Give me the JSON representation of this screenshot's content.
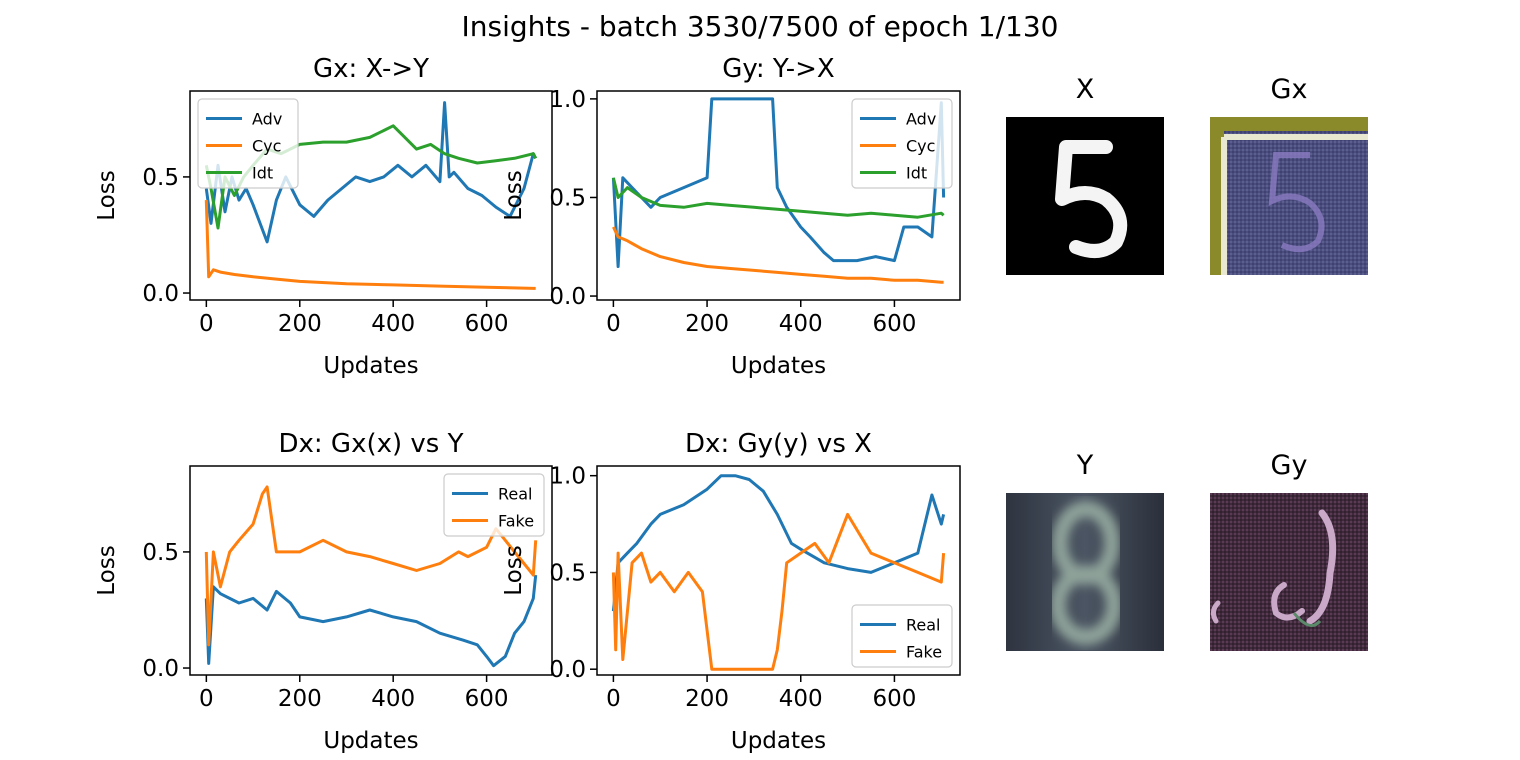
{
  "figure": {
    "suptitle": "Insights - batch 3530/7500 of epoch 1/130"
  },
  "colors": {
    "blue": "#1f77b4",
    "orange": "#ff7f0e",
    "green": "#2ca02c"
  },
  "chart_data": [
    {
      "id": "gx",
      "type": "line",
      "title": "Gx: X->Y",
      "xlabel": "Updates",
      "ylabel": "Loss",
      "xlim": [
        -35,
        740
      ],
      "ylim": [
        -0.03,
        0.87
      ],
      "xticks": [
        0,
        200,
        400,
        600
      ],
      "yticks": [
        0.0,
        0.5
      ],
      "ytick_labels": [
        "0.0",
        "0.5"
      ],
      "legend_loc": "upper left",
      "series": [
        {
          "name": "Adv",
          "color": "#1f77b4",
          "x": [
            0,
            10,
            25,
            40,
            55,
            70,
            85,
            100,
            115,
            130,
            150,
            170,
            200,
            230,
            260,
            290,
            320,
            350,
            380,
            410,
            440,
            470,
            500,
            510,
            520,
            530,
            560,
            590,
            620,
            650,
            680,
            700,
            705
          ],
          "y": [
            0.45,
            0.3,
            0.55,
            0.35,
            0.5,
            0.4,
            0.45,
            0.38,
            0.3,
            0.22,
            0.4,
            0.5,
            0.38,
            0.33,
            0.4,
            0.45,
            0.5,
            0.48,
            0.5,
            0.55,
            0.5,
            0.55,
            0.48,
            0.82,
            0.5,
            0.52,
            0.45,
            0.42,
            0.37,
            0.33,
            0.45,
            0.6,
            0.58
          ]
        },
        {
          "name": "Cyc",
          "color": "#ff7f0e",
          "x": [
            0,
            5,
            15,
            30,
            60,
            100,
            150,
            200,
            300,
            400,
            500,
            600,
            700,
            705
          ],
          "y": [
            0.4,
            0.07,
            0.1,
            0.09,
            0.08,
            0.07,
            0.06,
            0.05,
            0.04,
            0.035,
            0.03,
            0.025,
            0.02,
            0.02
          ]
        },
        {
          "name": "Idt",
          "color": "#2ca02c",
          "x": [
            0,
            10,
            25,
            40,
            60,
            80,
            100,
            130,
            160,
            200,
            250,
            300,
            350,
            380,
            400,
            420,
            450,
            480,
            510,
            540,
            580,
            620,
            660,
            700,
            705
          ],
          "y": [
            0.55,
            0.45,
            0.28,
            0.5,
            0.42,
            0.5,
            0.55,
            0.62,
            0.6,
            0.64,
            0.65,
            0.65,
            0.67,
            0.7,
            0.72,
            0.68,
            0.62,
            0.64,
            0.6,
            0.58,
            0.56,
            0.57,
            0.58,
            0.6,
            0.58
          ]
        }
      ]
    },
    {
      "id": "gy",
      "type": "line",
      "title": "Gy: Y->X",
      "xlabel": "Updates",
      "ylabel": "Loss",
      "xlim": [
        -35,
        740
      ],
      "ylim": [
        -0.02,
        1.04
      ],
      "xticks": [
        0,
        200,
        400,
        600
      ],
      "yticks": [
        0.0,
        0.5,
        1.0
      ],
      "ytick_labels": [
        "0.0",
        "0.5",
        "1.0"
      ],
      "legend_loc": "upper right",
      "series": [
        {
          "name": "Adv",
          "color": "#1f77b4",
          "x": [
            0,
            10,
            20,
            40,
            60,
            80,
            100,
            150,
            200,
            210,
            250,
            300,
            340,
            350,
            370,
            400,
            420,
            450,
            470,
            520,
            560,
            600,
            620,
            650,
            680,
            700,
            705
          ],
          "y": [
            0.6,
            0.15,
            0.6,
            0.55,
            0.5,
            0.45,
            0.5,
            0.55,
            0.6,
            1.0,
            1.0,
            1.0,
            1.0,
            0.55,
            0.45,
            0.35,
            0.3,
            0.22,
            0.18,
            0.18,
            0.2,
            0.18,
            0.35,
            0.35,
            0.3,
            0.98,
            0.5
          ]
        },
        {
          "name": "Cyc",
          "color": "#ff7f0e",
          "x": [
            0,
            10,
            30,
            60,
            100,
            150,
            200,
            250,
            300,
            350,
            400,
            450,
            500,
            550,
            600,
            650,
            700,
            705
          ],
          "y": [
            0.35,
            0.3,
            0.28,
            0.24,
            0.2,
            0.17,
            0.15,
            0.14,
            0.13,
            0.12,
            0.11,
            0.1,
            0.09,
            0.09,
            0.08,
            0.08,
            0.07,
            0.07
          ]
        },
        {
          "name": "Idt",
          "color": "#2ca02c",
          "x": [
            0,
            10,
            30,
            60,
            100,
            150,
            200,
            250,
            300,
            350,
            400,
            450,
            500,
            550,
            600,
            650,
            700,
            705
          ],
          "y": [
            0.6,
            0.5,
            0.55,
            0.5,
            0.46,
            0.45,
            0.47,
            0.46,
            0.45,
            0.44,
            0.43,
            0.42,
            0.41,
            0.42,
            0.41,
            0.4,
            0.42,
            0.41
          ]
        }
      ]
    },
    {
      "id": "dx1",
      "type": "line",
      "title": "Dx: Gx(x) vs Y",
      "xlabel": "Updates",
      "ylabel": "Loss",
      "xlim": [
        -35,
        740
      ],
      "ylim": [
        -0.03,
        0.87
      ],
      "xticks": [
        0,
        200,
        400,
        600
      ],
      "yticks": [
        0.0,
        0.5
      ],
      "ytick_labels": [
        "0.0",
        "0.5"
      ],
      "legend_loc": "upper right",
      "series": [
        {
          "name": "Real",
          "color": "#1f77b4",
          "x": [
            0,
            5,
            15,
            30,
            50,
            70,
            100,
            130,
            150,
            180,
            200,
            250,
            300,
            350,
            400,
            450,
            500,
            550,
            580,
            600,
            615,
            640,
            660,
            680,
            700,
            705
          ],
          "y": [
            0.3,
            0.02,
            0.35,
            0.32,
            0.3,
            0.28,
            0.3,
            0.25,
            0.33,
            0.28,
            0.22,
            0.2,
            0.22,
            0.25,
            0.22,
            0.2,
            0.15,
            0.12,
            0.1,
            0.05,
            0.01,
            0.05,
            0.15,
            0.2,
            0.3,
            0.4
          ]
        },
        {
          "name": "Fake",
          "color": "#ff7f0e",
          "x": [
            0,
            5,
            15,
            30,
            50,
            70,
            100,
            120,
            130,
            150,
            200,
            250,
            300,
            350,
            400,
            450,
            500,
            540,
            560,
            600,
            620,
            640,
            660,
            680,
            700,
            705
          ],
          "y": [
            0.5,
            0.1,
            0.5,
            0.35,
            0.5,
            0.55,
            0.62,
            0.75,
            0.78,
            0.5,
            0.5,
            0.55,
            0.5,
            0.48,
            0.45,
            0.42,
            0.45,
            0.5,
            0.48,
            0.52,
            0.6,
            0.55,
            0.5,
            0.45,
            0.4,
            0.55
          ]
        }
      ]
    },
    {
      "id": "dx2",
      "type": "line",
      "title": "Dx: Gy(y) vs X",
      "xlabel": "Updates",
      "ylabel": "Loss",
      "xlim": [
        -35,
        740
      ],
      "ylim": [
        -0.03,
        1.05
      ],
      "xticks": [
        0,
        200,
        400,
        600
      ],
      "yticks": [
        0.0,
        0.5,
        1.0
      ],
      "ytick_labels": [
        "0.0",
        "0.5",
        "1.0"
      ],
      "legend_loc": "lower right",
      "series": [
        {
          "name": "Real",
          "color": "#1f77b4",
          "x": [
            0,
            10,
            30,
            50,
            80,
            100,
            150,
            200,
            230,
            260,
            290,
            320,
            350,
            380,
            400,
            450,
            500,
            550,
            600,
            650,
            680,
            700,
            705
          ],
          "y": [
            0.3,
            0.55,
            0.6,
            0.65,
            0.75,
            0.8,
            0.85,
            0.93,
            1.0,
            1.0,
            0.98,
            0.92,
            0.8,
            0.65,
            0.62,
            0.55,
            0.52,
            0.5,
            0.55,
            0.6,
            0.9,
            0.75,
            0.8
          ]
        },
        {
          "name": "Fake",
          "color": "#ff7f0e",
          "x": [
            0,
            5,
            10,
            20,
            40,
            60,
            80,
            100,
            130,
            160,
            190,
            200,
            210,
            250,
            300,
            340,
            350,
            360,
            370,
            400,
            430,
            460,
            500,
            550,
            600,
            650,
            700,
            705
          ],
          "y": [
            0.5,
            0.1,
            0.6,
            0.05,
            0.55,
            0.6,
            0.45,
            0.5,
            0.4,
            0.5,
            0.4,
            0.2,
            0.0,
            0.0,
            0.0,
            0.0,
            0.1,
            0.3,
            0.55,
            0.6,
            0.65,
            0.55,
            0.8,
            0.6,
            0.55,
            0.5,
            0.45,
            0.6
          ]
        }
      ]
    }
  ],
  "images": [
    {
      "id": "x",
      "title": "X"
    },
    {
      "id": "gx",
      "title": "Gx"
    },
    {
      "id": "y",
      "title": "Y"
    },
    {
      "id": "gy",
      "title": "Gy"
    }
  ]
}
